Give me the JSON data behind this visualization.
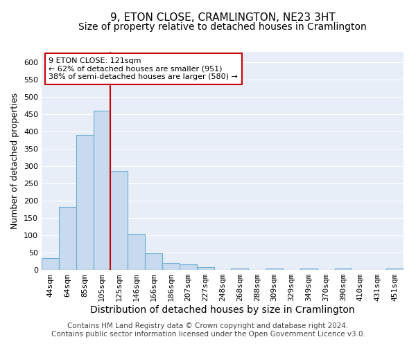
{
  "title": "9, ETON CLOSE, CRAMLINGTON, NE23 3HT",
  "subtitle": "Size of property relative to detached houses in Cramlington",
  "xlabel": "Distribution of detached houses by size in Cramlington",
  "ylabel": "Number of detached properties",
  "categories": [
    "44sqm",
    "64sqm",
    "85sqm",
    "105sqm",
    "125sqm",
    "146sqm",
    "166sqm",
    "186sqm",
    "207sqm",
    "227sqm",
    "248sqm",
    "268sqm",
    "288sqm",
    "309sqm",
    "329sqm",
    "349sqm",
    "370sqm",
    "390sqm",
    "410sqm",
    "431sqm",
    "451sqm"
  ],
  "values": [
    35,
    182,
    390,
    460,
    287,
    105,
    48,
    20,
    16,
    9,
    0,
    4,
    0,
    5,
    0,
    5,
    0,
    5,
    0,
    0,
    4
  ],
  "bar_color": "#c8daed",
  "bar_edge_color": "#6baed6",
  "vline_color": "#cc0000",
  "annotation_text": "9 ETON CLOSE: 121sqm\n← 62% of detached houses are smaller (951)\n38% of semi-detached houses are larger (580) →",
  "annotation_box_color": "#ffffff",
  "annotation_box_edge": "#cc0000",
  "ylim": [
    0,
    630
  ],
  "yticks": [
    0,
    50,
    100,
    150,
    200,
    250,
    300,
    350,
    400,
    450,
    500,
    550,
    600
  ],
  "background_color": "#e8eef7",
  "footer_line1": "Contains HM Land Registry data © Crown copyright and database right 2024.",
  "footer_line2": "Contains public sector information licensed under the Open Government Licence v3.0.",
  "title_fontsize": 11,
  "subtitle_fontsize": 10,
  "xlabel_fontsize": 10,
  "ylabel_fontsize": 9,
  "tick_fontsize": 8,
  "annotation_fontsize": 8,
  "footer_fontsize": 7.5
}
